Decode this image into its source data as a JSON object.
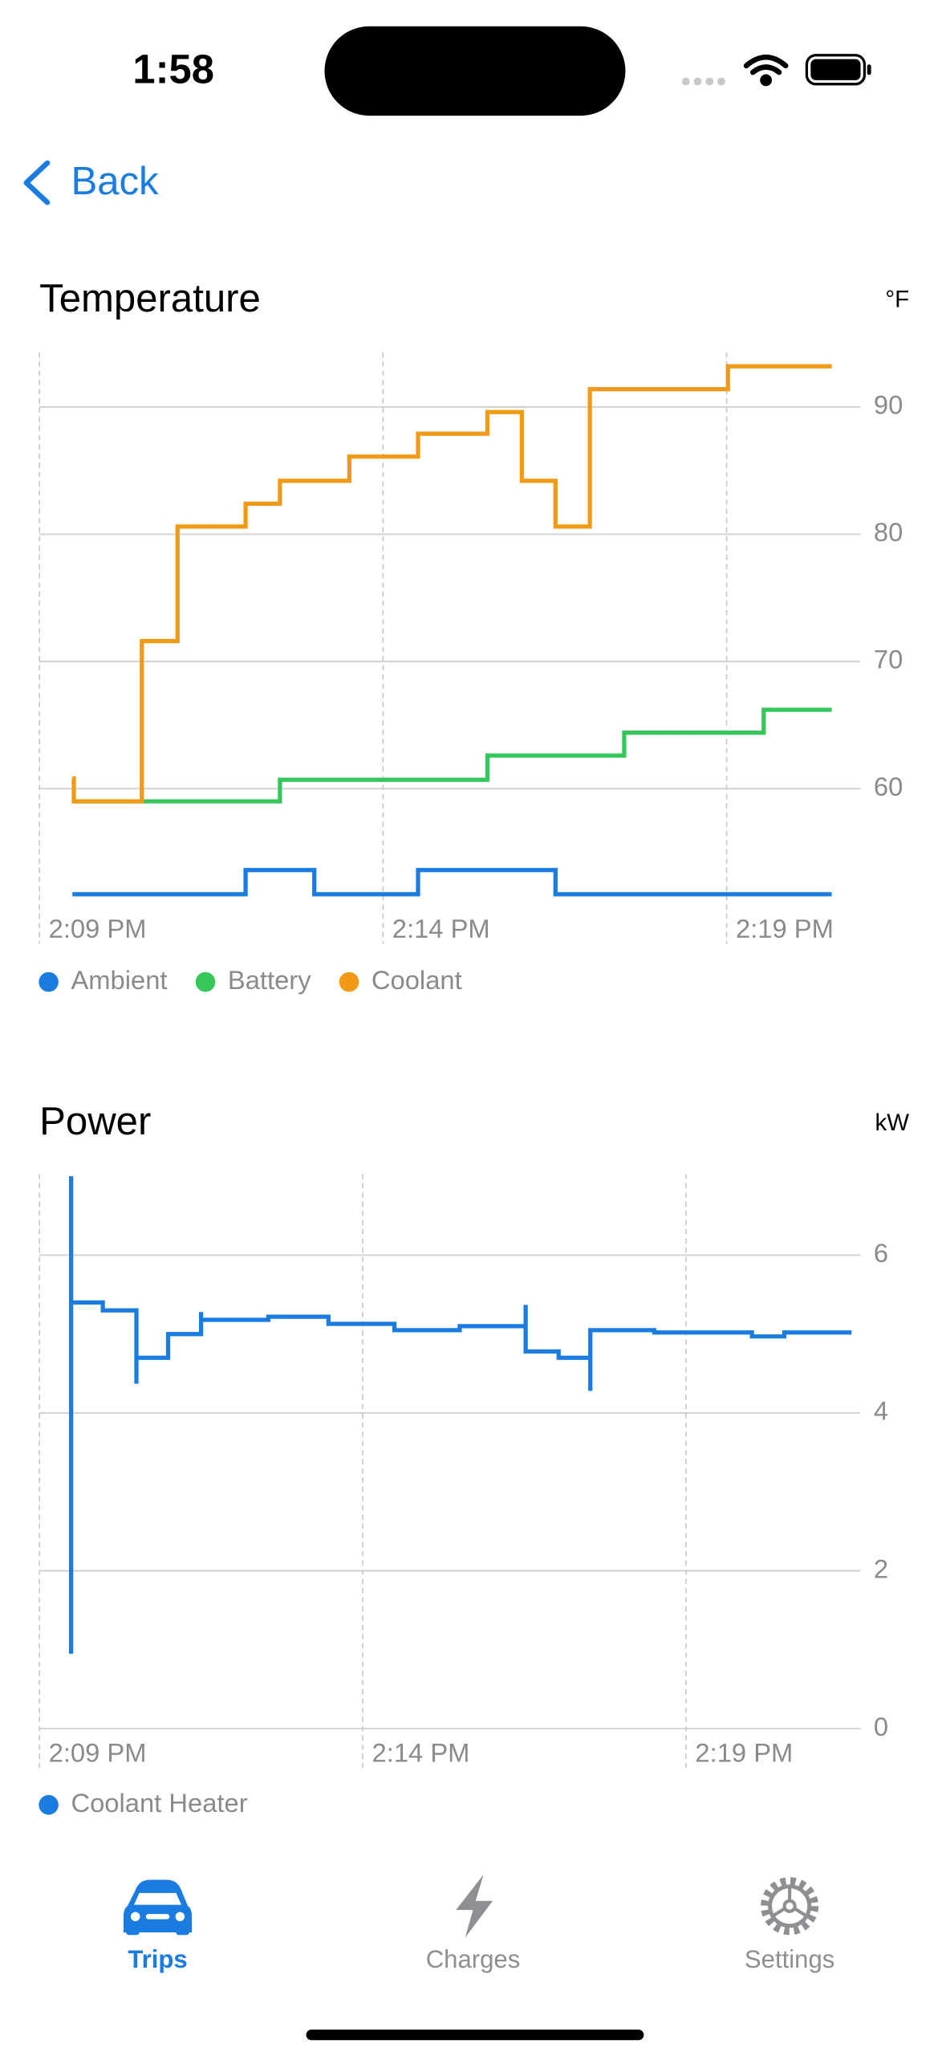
{
  "status_bar": {
    "time": "1:58"
  },
  "nav": {
    "back": "Back"
  },
  "chart_data": [
    {
      "type": "line",
      "step": "after",
      "title": "Temperature",
      "unit_label": "°F",
      "xlim": [
        849,
        860.95
      ],
      "xticks": [
        {
          "value": 849,
          "label": "2:09 PM"
        },
        {
          "value": 854,
          "label": "2:14 PM"
        },
        {
          "value": 859,
          "label": "2:19 PM"
        }
      ],
      "ylim": [
        47.8,
        94.3
      ],
      "yticks": [
        60,
        70,
        80,
        90
      ],
      "grid": true,
      "y_axis_side": "right",
      "legend": "bottom-left",
      "series": [
        {
          "name": "Ambient",
          "color": "#1a7be0",
          "x": [
            849.48,
            852.0,
            853.0,
            854.51,
            856.51,
            860.53
          ],
          "values": [
            51.7,
            53.6,
            51.7,
            53.6,
            51.7,
            51.7
          ]
        },
        {
          "name": "Battery",
          "color": "#34c759",
          "x": [
            849.48,
            852.5,
            855.52,
            857.51,
            859.54,
            860.53
          ],
          "values": [
            59.0,
            60.7,
            62.6,
            64.4,
            66.2,
            66.2
          ]
        },
        {
          "name": "Coolant",
          "color": "#f29a16",
          "x": [
            849.48,
            849.5,
            850.49,
            851.01,
            852.0,
            852.5,
            853.51,
            854.51,
            855.52,
            856.02,
            856.51,
            857.01,
            859.02,
            860.53
          ],
          "values": [
            60.8,
            59.0,
            71.6,
            80.6,
            82.4,
            84.2,
            86.1,
            87.9,
            89.6,
            84.2,
            80.6,
            91.4,
            93.2,
            93.2
          ]
        }
      ]
    },
    {
      "type": "line",
      "step": "after",
      "title": "Power",
      "unit_label": "kW",
      "xlim": [
        849,
        861.7
      ],
      "xticks": [
        {
          "value": 849,
          "label": "2:09 PM"
        },
        {
          "value": 854,
          "label": "2:14 PM"
        },
        {
          "value": 859,
          "label": "2:19 PM"
        }
      ],
      "ylim": [
        0,
        7.03
      ],
      "yticks": [
        0,
        2,
        4,
        6
      ],
      "grid": true,
      "y_axis_side": "right",
      "legend": "bottom-left",
      "series": [
        {
          "name": "Coolant Heater",
          "color": "#1a7be0",
          "x": [
            849.49,
            849.49,
            849.49,
            849.98,
            850.5,
            850.5,
            850.99,
            851.5,
            851.5,
            852.54,
            853.47,
            854.49,
            855.5,
            856.52,
            856.52,
            857.03,
            857.52,
            857.52,
            858.51,
            860.02,
            860.52,
            861.56
          ],
          "values": [
            0.95,
            7.0,
            5.4,
            5.3,
            4.37,
            4.7,
            5.0,
            5.28,
            5.18,
            5.22,
            5.13,
            5.05,
            5.1,
            5.37,
            4.78,
            4.7,
            4.28,
            5.05,
            5.02,
            4.97,
            5.02,
            5.02
          ]
        }
      ]
    }
  ],
  "tab_bar": {
    "tabs": [
      {
        "label": "Trips",
        "selected": true
      },
      {
        "label": "Charges",
        "selected": false
      },
      {
        "label": "Settings",
        "selected": false
      }
    ]
  }
}
